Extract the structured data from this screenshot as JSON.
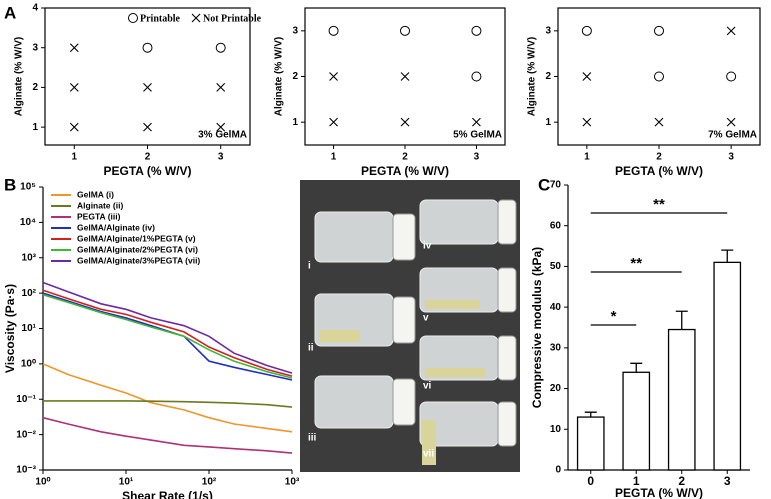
{
  "panel_labels": [
    "A",
    "B",
    "C"
  ],
  "photo_labels": [
    "i",
    "ii",
    "iii",
    "iv",
    "v",
    "vi",
    "vii"
  ],
  "chart_data": [
    {
      "type": "scatter",
      "xlabel": "PEGTA (% W/V)",
      "ylabel": "Alginate (% W/V)",
      "annotation": "3% GelMA",
      "xlim": [
        0.6,
        3.4
      ],
      "ylim": [
        0.55,
        4
      ],
      "xticks": [
        1,
        2,
        3
      ],
      "yticks": [
        1,
        2,
        3,
        4
      ],
      "series": [
        {
          "name": "Printable",
          "marker": "circle",
          "x": [
            2,
            3
          ],
          "values": [
            3,
            3
          ]
        },
        {
          "name": "Not Printable",
          "marker": "cross",
          "x": [
            1,
            1,
            2,
            3,
            1,
            2,
            3
          ],
          "values": [
            3,
            2,
            2,
            2,
            1,
            1,
            1
          ]
        }
      ]
    },
    {
      "type": "scatter",
      "xlabel": "PEGTA (% W/V)",
      "ylabel": "Alginate (% W/V)",
      "annotation": "5% GelMA",
      "xlim": [
        0.6,
        3.4
      ],
      "ylim": [
        0.5,
        3.5
      ],
      "xticks": [
        1,
        2,
        3
      ],
      "yticks": [
        1,
        2,
        3
      ],
      "series": [
        {
          "marker": "circle",
          "x": [
            1,
            2,
            3,
            3
          ],
          "values": [
            3,
            3,
            3,
            2
          ]
        },
        {
          "marker": "cross",
          "x": [
            1,
            2,
            1,
            2,
            3
          ],
          "values": [
            2,
            2,
            1,
            1,
            1
          ]
        }
      ]
    },
    {
      "type": "scatter",
      "xlabel": "PEGTA (% W/V)",
      "ylabel": "Alginate (% W/V)",
      "annotation": "7% GelMA",
      "xlim": [
        0.6,
        3.4
      ],
      "ylim": [
        0.5,
        3.5
      ],
      "xticks": [
        1,
        2,
        3
      ],
      "yticks": [
        1,
        2,
        3
      ],
      "series": [
        {
          "marker": "circle",
          "x": [
            1,
            2,
            2,
            3
          ],
          "values": [
            3,
            3,
            2,
            2
          ]
        },
        {
          "marker": "cross",
          "x": [
            3,
            1,
            1,
            2,
            3
          ],
          "values": [
            3,
            2,
            1,
            1,
            1
          ]
        }
      ]
    },
    {
      "type": "line",
      "xlabel": "Shear Rate (1/s)",
      "ylabel": "Viscosity (Pa·s)",
      "log_x": true,
      "log_y": true,
      "xlim": [
        1,
        1000
      ],
      "ylim": [
        0.001,
        100000
      ],
      "xticks": [
        {
          "value": 1,
          "label": "10⁰"
        },
        {
          "value": 10,
          "label": "10¹"
        },
        {
          "value": 100,
          "label": "10²"
        },
        {
          "value": 1000,
          "label": "10³"
        }
      ],
      "yticks": [
        {
          "value": 0.001,
          "label": "10⁻³"
        },
        {
          "value": 0.01,
          "label": "10⁻²"
        },
        {
          "value": 0.1,
          "label": "10⁻¹"
        },
        {
          "value": 1,
          "label": "10⁰"
        },
        {
          "value": 10,
          "label": "10¹"
        },
        {
          "value": 100,
          "label": "10²"
        },
        {
          "value": 1000,
          "label": "10³"
        },
        {
          "value": 10000,
          "label": "10⁴"
        },
        {
          "value": 100000,
          "label": "10⁵"
        }
      ],
      "x": [
        1,
        2,
        5,
        10,
        20,
        50,
        100,
        200,
        500,
        1000
      ],
      "series": [
        {
          "name": "GelMA (i)",
          "color": "#f0962a",
          "values": [
            1.0,
            0.5,
            0.25,
            0.15,
            0.08,
            0.05,
            0.03,
            0.02,
            0.015,
            0.012
          ]
        },
        {
          "name": "Alginate (ii)",
          "color": "#6b7a1e",
          "values": [
            0.09,
            0.09,
            0.09,
            0.09,
            0.088,
            0.085,
            0.082,
            0.078,
            0.07,
            0.06
          ]
        },
        {
          "name": "PEGTA (iii)",
          "color": "#b0307a",
          "values": [
            0.03,
            0.02,
            0.012,
            0.009,
            0.007,
            0.005,
            0.0045,
            0.004,
            0.0035,
            0.003
          ]
        },
        {
          "name": "GelMA/Alginate (iv)",
          "color": "#1f2fbf",
          "values": [
            100,
            60,
            30,
            20,
            12,
            6,
            1.2,
            0.8,
            0.5,
            0.35
          ]
        },
        {
          "name": "GelMA/Alginate/1%PEGTA (v)",
          "color": "#d42020",
          "values": [
            120,
            70,
            35,
            25,
            15,
            8,
            3,
            1.5,
            0.7,
            0.45
          ]
        },
        {
          "name": "GelMA/Alginate/2%PEGTA (vi)",
          "color": "#3fb83a",
          "values": [
            90,
            55,
            28,
            18,
            11,
            6,
            2.5,
            1.2,
            0.6,
            0.4
          ]
        },
        {
          "name": "GelMA/Alginate/3%PEGTA (vii)",
          "color": "#6a2aa8",
          "values": [
            200,
            110,
            50,
            35,
            20,
            12,
            6,
            2,
            0.9,
            0.55
          ]
        }
      ]
    },
    {
      "type": "bar",
      "xlabel": "PEGTA (% W/V)",
      "ylabel": "Compressive modulus (kPa)",
      "color": "#ffffff",
      "categories": [
        "0",
        "1",
        "2",
        "3"
      ],
      "values": [
        13,
        24,
        34.5,
        51
      ],
      "errors": [
        1.2,
        2.2,
        4.5,
        3
      ],
      "ylim": [
        0,
        70
      ],
      "yticks": [
        0,
        10,
        20,
        30,
        40,
        50,
        60,
        70
      ],
      "annotations": [
        {
          "text": "*",
          "from": 0,
          "to": 1
        },
        {
          "text": "**",
          "from": 0,
          "to": 2
        },
        {
          "text": "**",
          "from": 0,
          "to": 3
        }
      ]
    }
  ]
}
